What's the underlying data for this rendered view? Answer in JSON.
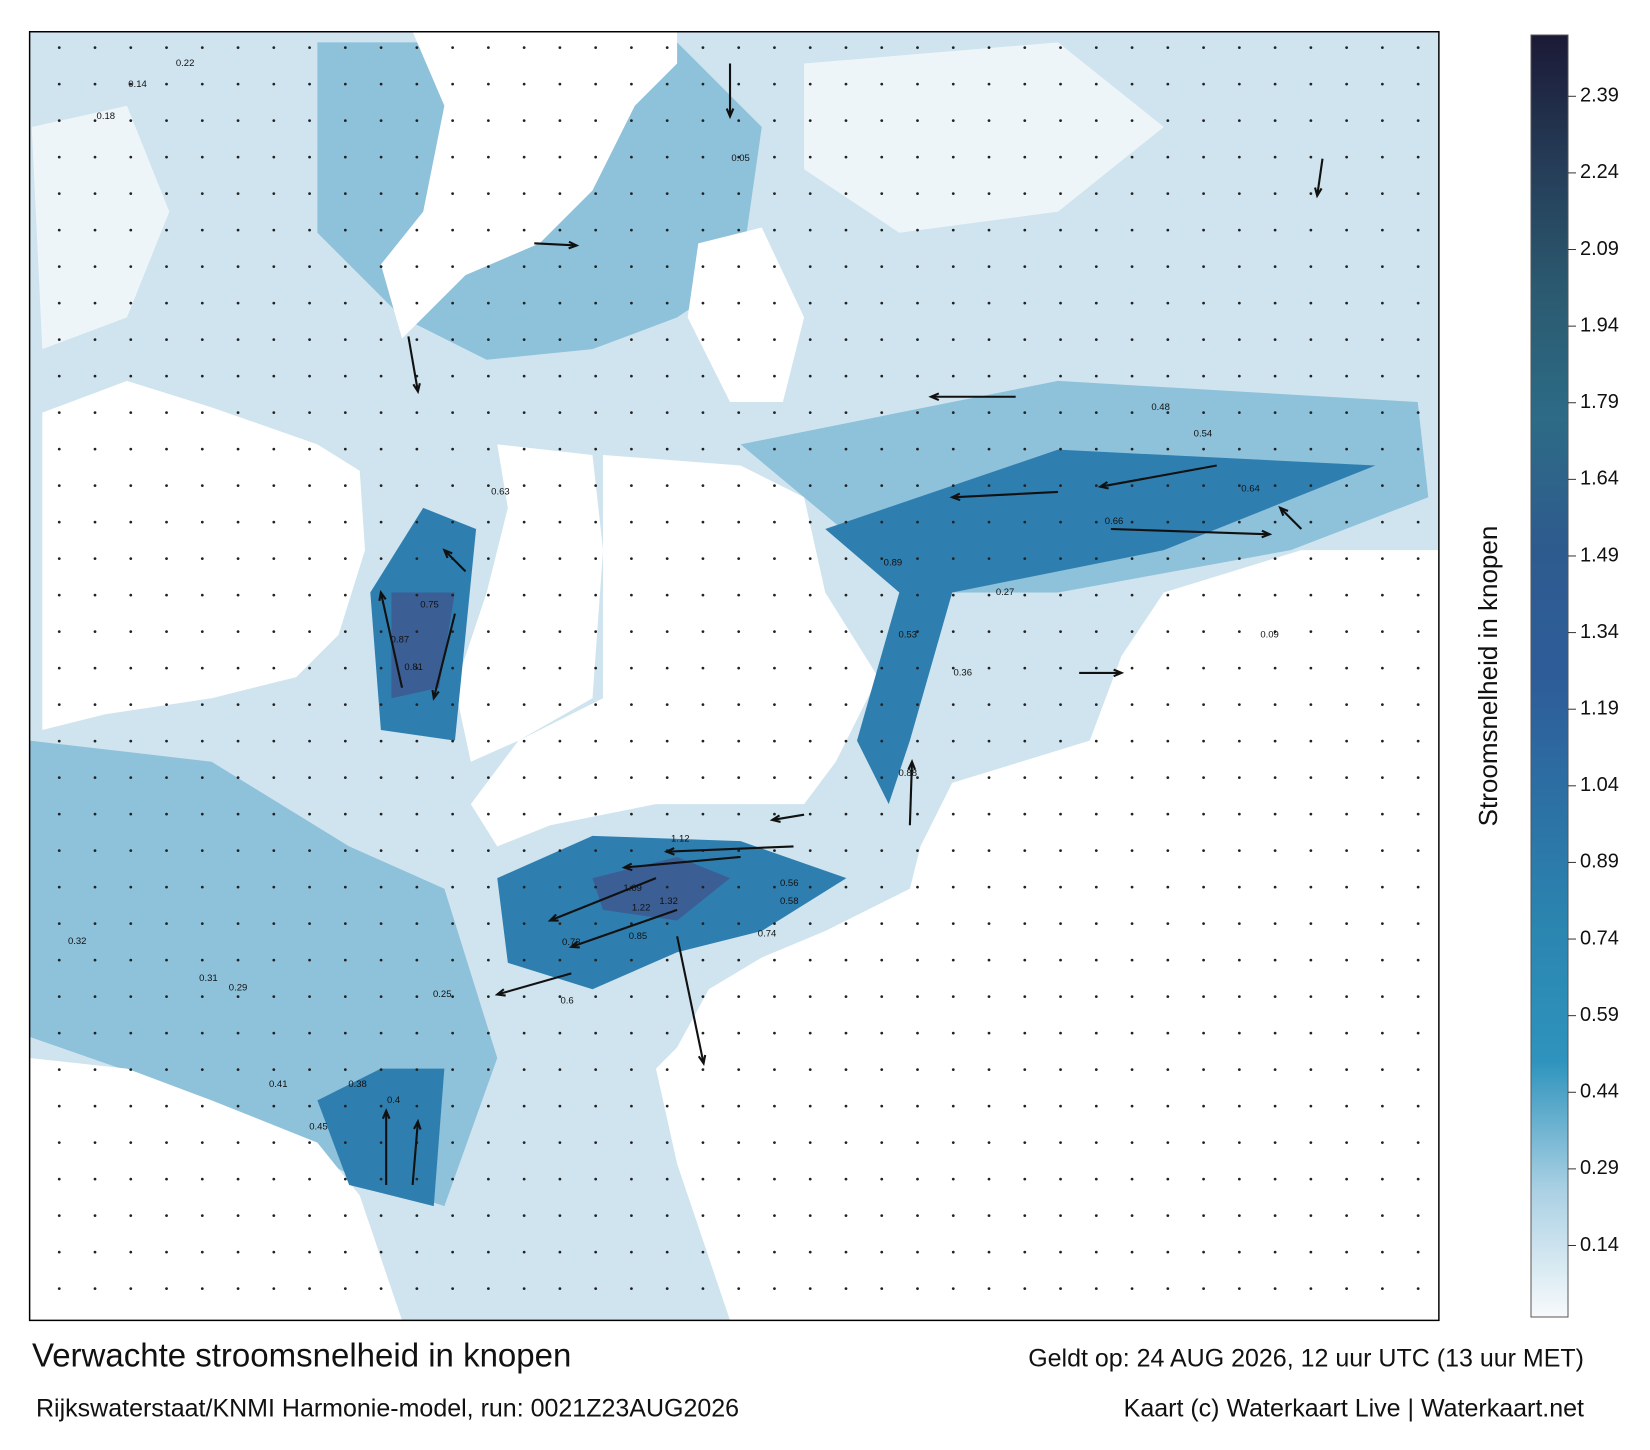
{
  "map": {
    "title": "Verwachte stroomsnelheid in knopen",
    "subtitle": "Rijkswaterstaat/KNMI Harmonie-model, run: 0021Z23AUG2026",
    "valid_time": "Geldt op: 24 AUG 2026, 12 uur UTC (13 uur MET)",
    "credit": "Kaart (c) Waterkaart Live | Waterkaart.net",
    "colorbar": {
      "label": "Stroomsnelheid in knopen",
      "lim": [
        0,
        2.51
      ],
      "ticks": [
        0.14,
        0.29,
        0.44,
        0.59,
        0.74,
        0.89,
        1.04,
        1.19,
        1.34,
        1.49,
        1.64,
        1.79,
        1.94,
        2.09,
        2.24,
        2.39
      ],
      "colors": [
        "#f7fafc",
        "#a9d0e3",
        "#2e93bd",
        "#2b86b0",
        "#2c71a4",
        "#2e5c99",
        "#2e5b8e",
        "#2d6b86",
        "#2b5a70",
        "#253c57",
        "#1b1a36"
      ]
    },
    "speed_labels": [
      1.12,
      1.22,
      1.32,
      1.09,
      0.56,
      0.58,
      0.74,
      0.73,
      0.81,
      0.87,
      0.75,
      0.63,
      0.66,
      0.64,
      0.54,
      0.48,
      0.89,
      0.88,
      0.85,
      0.6,
      0.41,
      0.45,
      0.38,
      0.4,
      0.31,
      0.32,
      0.29,
      0.25,
      0.53,
      0.36,
      0.18,
      0.14,
      0.09,
      0.05,
      0.27,
      0.22
    ]
  }
}
